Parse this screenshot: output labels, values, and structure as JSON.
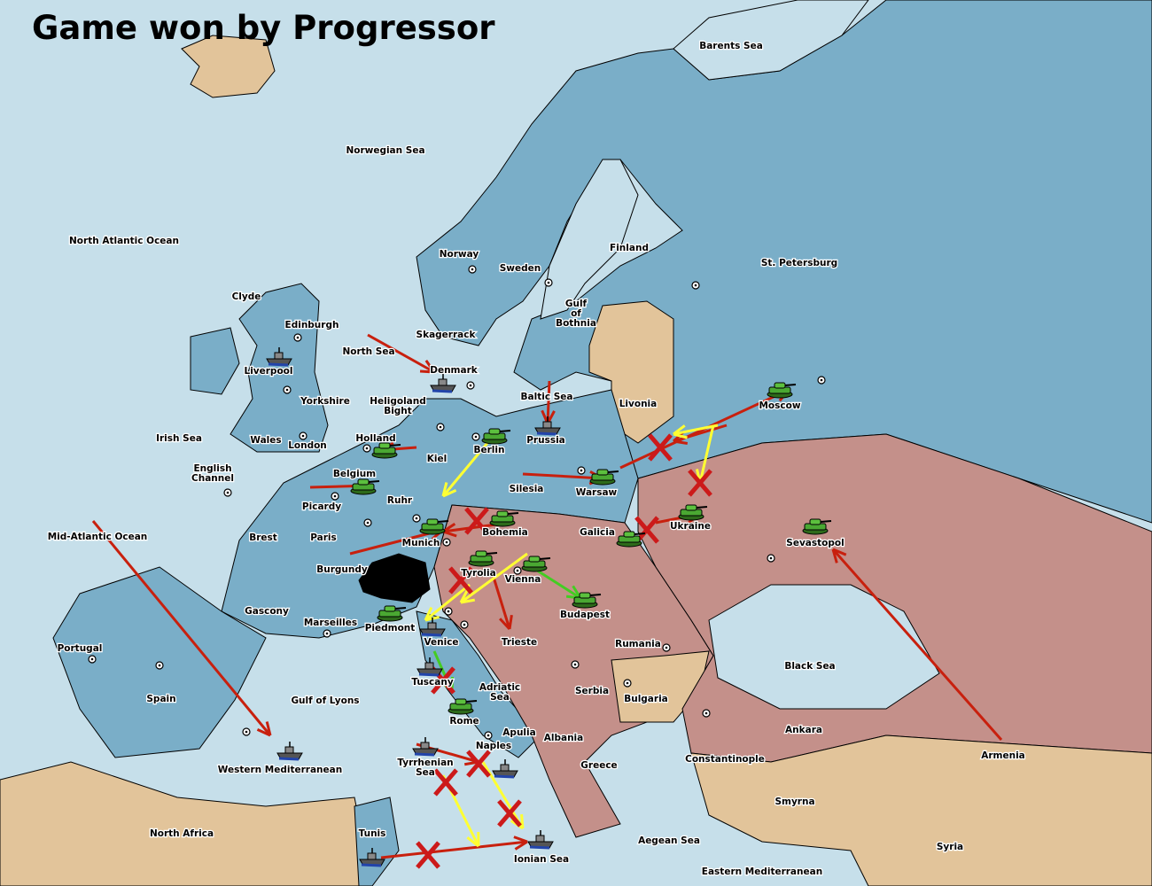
{
  "title": "Game won by Progressor",
  "colors": {
    "sea": "#c6dfea",
    "land_neutral_blue": "#7aaec8",
    "austria_turkey": "#c4908a",
    "neutral": "#e2c49a",
    "impassable": "#000000",
    "move_arrow": "#c8200e",
    "support_arrow": "#ffff33",
    "convoy_arrow": "#44cc22",
    "failed_marker": "#cc1a1a"
  },
  "provinces": [
    "Barents Sea",
    "Norwegian Sea",
    "North Atlantic Ocean",
    "Norway",
    "Sweden",
    "Finland",
    "St. Petersburg",
    "Clyde",
    "Edinburgh",
    "Gulf of Bothnia",
    "Skagerrack",
    "North Sea",
    "Liverpool",
    "Denmark",
    "Yorkshire",
    "Heligoland Bight",
    "Baltic Sea",
    "Livonia",
    "Moscow",
    "Irish Sea",
    "Wales",
    "London",
    "Holland",
    "Kiel",
    "Berlin",
    "Prussia",
    "English Channel",
    "Belgium",
    "Warsaw",
    "Silesia",
    "Picardy",
    "Ruhr",
    "Mid-Atlantic Ocean",
    "Brest",
    "Paris",
    "Munich",
    "Bohemia",
    "Galicia",
    "Ukraine",
    "Sevastopol",
    "Burgundy",
    "Tyrolia",
    "Vienna",
    "Gascony",
    "Budapest",
    "Marseilles",
    "Piedmont",
    "Venice",
    "Trieste",
    "Rumania",
    "Portugal",
    "Black Sea",
    "Spain",
    "Tuscany",
    "Adriatic Sea",
    "Serbia",
    "Bulgaria",
    "Gulf of Lyons",
    "Rome",
    "Apulia",
    "Albania",
    "Ankara",
    "Naples",
    "Armenia",
    "Constantinople",
    "Western Mediterranean",
    "Tyrrhenian Sea",
    "Greece",
    "Smyrna",
    "North Africa",
    "Tunis",
    "Aegean Sea",
    "Syria",
    "Ionian Sea",
    "Eastern Mediterranean"
  ],
  "units": [
    {
      "type": "fleet",
      "province": "Liverpool"
    },
    {
      "type": "fleet",
      "province": "Denmark"
    },
    {
      "type": "fleet",
      "province": "Prussia"
    },
    {
      "type": "army",
      "province": "Moscow"
    },
    {
      "type": "army",
      "province": "Berlin"
    },
    {
      "type": "army",
      "province": "Holland"
    },
    {
      "type": "army",
      "province": "Belgium"
    },
    {
      "type": "army",
      "province": "Warsaw"
    },
    {
      "type": "army",
      "province": "Ukraine"
    },
    {
      "type": "army",
      "province": "Galicia"
    },
    {
      "type": "army",
      "province": "Sevastopol"
    },
    {
      "type": "army",
      "province": "Bohemia"
    },
    {
      "type": "army",
      "province": "Munich"
    },
    {
      "type": "army",
      "province": "Tyrolia"
    },
    {
      "type": "army",
      "province": "Vienna"
    },
    {
      "type": "army",
      "province": "Budapest"
    },
    {
      "type": "army",
      "province": "Piedmont"
    },
    {
      "type": "fleet",
      "province": "Venice"
    },
    {
      "type": "fleet",
      "province": "Tuscany"
    },
    {
      "type": "army",
      "province": "Rome"
    },
    {
      "type": "fleet",
      "province": "Western Mediterranean"
    },
    {
      "type": "fleet",
      "province": "Tyrrhenian Sea"
    },
    {
      "type": "fleet",
      "province": "Naples"
    },
    {
      "type": "fleet",
      "province": "Tunis"
    },
    {
      "type": "fleet",
      "province": "Ionian Sea"
    }
  ]
}
